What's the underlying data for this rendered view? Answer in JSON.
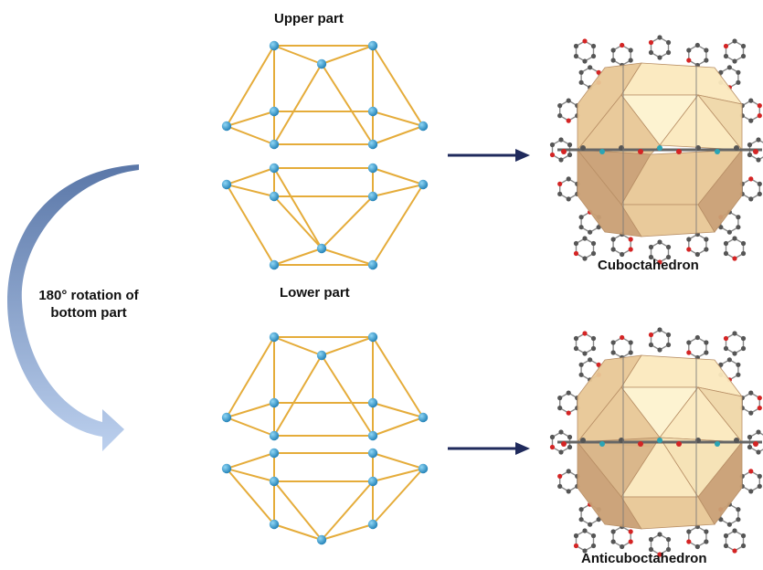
{
  "labels": {
    "upper": "Upper part",
    "lower": "Lower part",
    "rotation_line1": "180° rotation of",
    "rotation_line2": "bottom part",
    "cuboctahedron": "Cuboctahedron",
    "anticuboctahedron": "Anticuboctahedron"
  },
  "colors": {
    "edge": "#e5ac3a",
    "node": "#2e9bd0",
    "arrow": "#1f2a5c",
    "curved_arrow_start": "#5a77a8",
    "curved_arrow_end": "#bcd0ee",
    "polyhedron_light": "#fbe9be",
    "polyhedron_mid": "#e8c796",
    "polyhedron_dark": "#c99f74",
    "framework_atom": "#555555",
    "oxygen_atom": "#d42424",
    "metal_atom": "#2aa4b5"
  }
}
